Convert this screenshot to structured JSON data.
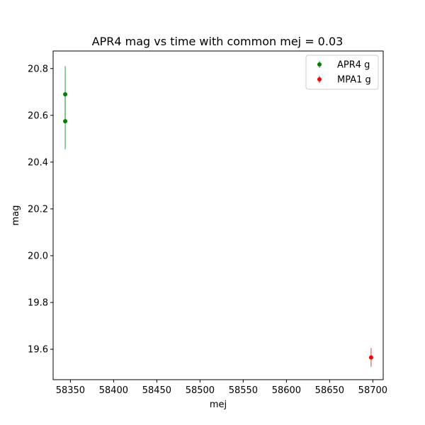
{
  "chart_data": {
    "type": "scatter",
    "title": "APR4 mag vs time with common mej = 0.03",
    "xlabel": "mej",
    "ylabel": "mag",
    "xlim": [
      58330,
      58712
    ],
    "ylim": [
      19.47,
      20.875
    ],
    "xticks": [
      58350,
      58400,
      58450,
      58500,
      58550,
      58600,
      58650,
      58700
    ],
    "yticks": [
      19.6,
      19.8,
      20.0,
      20.2,
      20.4,
      20.6,
      20.8
    ],
    "xtick_labels": [
      "58350",
      "58400",
      "58450",
      "58500",
      "58550",
      "58600",
      "58650",
      "58700"
    ],
    "ytick_labels": [
      "19.6",
      "19.8",
      "20.0",
      "20.2",
      "20.4",
      "20.6",
      "20.8"
    ],
    "grid": false,
    "legend_position": "top-right",
    "series": [
      {
        "name": "APR4 g",
        "color": "#008000",
        "points": [
          {
            "x": 58344,
            "y": 20.69,
            "yerr": 0.12
          },
          {
            "x": 58344,
            "y": 20.575,
            "yerr": 0.12
          }
        ]
      },
      {
        "name": "MPA1 g",
        "color": "#ff0000",
        "points": [
          {
            "x": 58698,
            "y": 19.565,
            "yerr": 0.04
          }
        ]
      }
    ]
  }
}
